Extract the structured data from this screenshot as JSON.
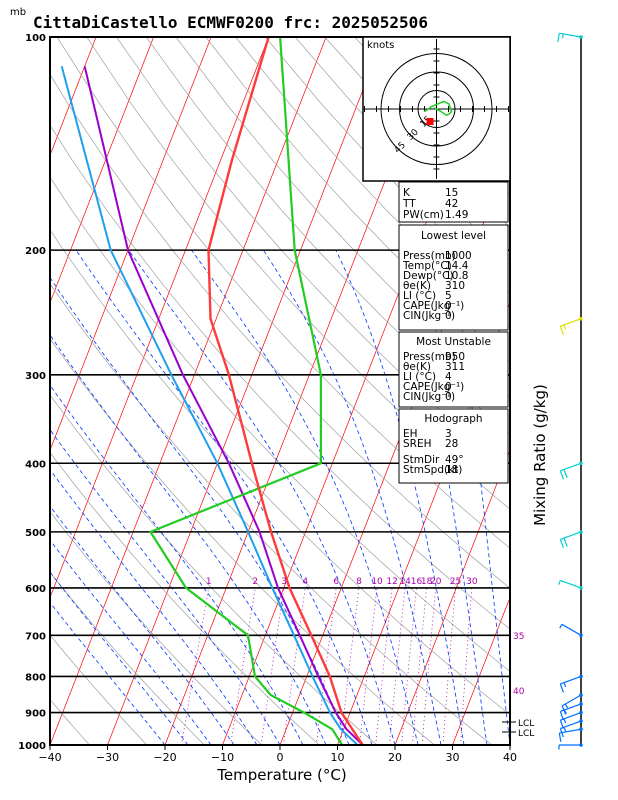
{
  "header": {
    "title": "CittaDiCastello ECMWF0200 frc: 2025052506",
    "pressure_unit": "mb"
  },
  "axes": {
    "xlabel": "Temperature (°C)",
    "right_label": "Mixing Ratio (g/kg)",
    "pressure_ticks": [
      "100",
      "200",
      "300",
      "400",
      "500",
      "600",
      "700",
      "800",
      "900",
      "1000"
    ],
    "temp_ticks": [
      "−40",
      "−30",
      "−20",
      "−10",
      "0",
      "10",
      "20",
      "30",
      "40"
    ],
    "mixing_ratio_labels": [
      "1",
      "2",
      "3",
      "4",
      "6",
      "8",
      "10",
      "12",
      "14",
      "16",
      "18",
      "20",
      "25",
      "30"
    ],
    "theta_e_labels": [
      "35",
      "40"
    ],
    "lcl_labels": [
      "LCL",
      "LCL"
    ]
  },
  "hodograph": {
    "unit": "knots",
    "ring_labels": [
      "15",
      "30",
      "45"
    ]
  },
  "indices": {
    "top": [
      {
        "label": "K",
        "value": "15"
      },
      {
        "label": "TT",
        "value": "42"
      },
      {
        "label": "PW(cm)",
        "value": "1.49"
      }
    ],
    "lowest_title": "Lowest level",
    "lowest": [
      {
        "label": "Press(mb)",
        "value": "1000"
      },
      {
        "label": "Temp(°C)",
        "value": "14.4"
      },
      {
        "label": "Dewp(°C)",
        "value": "10.8"
      },
      {
        "label": "θe(K)",
        "value": "310"
      },
      {
        "label": "LI (°C)",
        "value": "5"
      },
      {
        "label": "CAPE(Jkg⁻¹)",
        "value": "0"
      },
      {
        "label": "CIN(Jkg⁻¹)",
        "value": "0"
      }
    ],
    "unstable_title": "Most Unstable",
    "unstable": [
      {
        "label": "Press(mb)",
        "value": "950"
      },
      {
        "label": "θe(K)",
        "value": "311"
      },
      {
        "label": "LI (°C)",
        "value": "4"
      },
      {
        "label": "CAPE(Jkg⁻¹)",
        "value": "0"
      },
      {
        "label": "CIN(Jkg⁻¹)",
        "value": "0"
      }
    ],
    "hodo_title": "Hodograph",
    "hodo": [
      {
        "label": "EH",
        "value": "3"
      },
      {
        "label": "SREH",
        "value": "28"
      },
      {
        "label": "StmDir",
        "value": "49°"
      },
      {
        "label": "StmSpd(kt)",
        "value": "18"
      }
    ]
  },
  "colors": {
    "temperature": "#ff3a3a",
    "dewpoint": "#22cc22",
    "parcel": "#9900cc",
    "parcel2": "#1fa0ee",
    "isotherm": "#ff0000",
    "dry_adiabat": "#a0a0a0",
    "moist_adiabat": "#0033ff",
    "mixing_ratio": "#aa00aa",
    "barb_low": "#0070ff",
    "barb_mid": "#00d0d0",
    "barb_high": "#dddd00"
  },
  "chart_data": {
    "type": "skew-t",
    "pressure_range_mb": [
      1000,
      100
    ],
    "temperature_range_c": [
      -40,
      40
    ],
    "temperature": [
      [
        1000,
        14.4
      ],
      [
        950,
        11.5
      ],
      [
        900,
        8.5
      ],
      [
        800,
        4
      ],
      [
        700,
        -2
      ],
      [
        600,
        -9
      ],
      [
        500,
        -16
      ],
      [
        400,
        -24
      ],
      [
        300,
        -34
      ],
      [
        250,
        -41
      ],
      [
        200,
        -46
      ],
      [
        150,
        -48
      ],
      [
        100,
        -50
      ]
    ],
    "dewpoint": [
      [
        1000,
        10.8
      ],
      [
        950,
        8
      ],
      [
        900,
        2
      ],
      [
        850,
        -5
      ],
      [
        800,
        -9
      ],
      [
        700,
        -13
      ],
      [
        600,
        -27
      ],
      [
        500,
        -37
      ],
      [
        400,
        -12
      ],
      [
        300,
        -18
      ],
      [
        200,
        -31
      ],
      [
        100,
        -48
      ]
    ],
    "parcel": [
      [
        1000,
        14.4
      ],
      [
        950,
        10.5
      ],
      [
        900,
        7.5
      ],
      [
        800,
        2
      ],
      [
        700,
        -4
      ],
      [
        600,
        -11
      ],
      [
        500,
        -18
      ],
      [
        400,
        -28
      ],
      [
        300,
        -42
      ],
      [
        200,
        -60
      ],
      [
        110,
        -80
      ]
    ],
    "parcel_virtual": [
      [
        1000,
        13.5
      ],
      [
        950,
        9.5
      ],
      [
        900,
        6.5
      ],
      [
        800,
        1
      ],
      [
        700,
        -5
      ],
      [
        600,
        -12
      ],
      [
        500,
        -20
      ],
      [
        400,
        -30
      ],
      [
        300,
        -44
      ],
      [
        200,
        -63
      ],
      [
        110,
        -84
      ]
    ],
    "hodograph": [
      [
        -2,
        -1
      ],
      [
        2,
        1
      ],
      [
        5,
        3
      ],
      [
        8,
        5
      ],
      [
        10,
        4
      ],
      [
        12,
        2
      ],
      [
        10,
        -4
      ],
      [
        6,
        -6
      ],
      [
        3,
        -5
      ],
      [
        -4,
        -2
      ],
      [
        -8,
        1
      ],
      [
        -10,
        2
      ]
    ],
    "wind_barbs": [
      {
        "p": 1000,
        "dir": 270,
        "kt": 5
      },
      {
        "p": 950,
        "dir": 260,
        "kt": 10
      },
      {
        "p": 925,
        "dir": 250,
        "kt": 15
      },
      {
        "p": 900,
        "dir": 250,
        "kt": 15
      },
      {
        "p": 875,
        "dir": 250,
        "kt": 15
      },
      {
        "p": 850,
        "dir": 240,
        "kt": 15
      },
      {
        "p": 800,
        "dir": 250,
        "kt": 15
      },
      {
        "p": 700,
        "dir": 300,
        "kt": 5
      },
      {
        "p": 600,
        "dir": 290,
        "kt": 5
      },
      {
        "p": 500,
        "dir": 250,
        "kt": 20
      },
      {
        "p": 400,
        "dir": 250,
        "kt": 20
      },
      {
        "p": 250,
        "dir": 250,
        "kt": 15
      },
      {
        "p": 100,
        "dir": 280,
        "kt": 15
      }
    ]
  }
}
